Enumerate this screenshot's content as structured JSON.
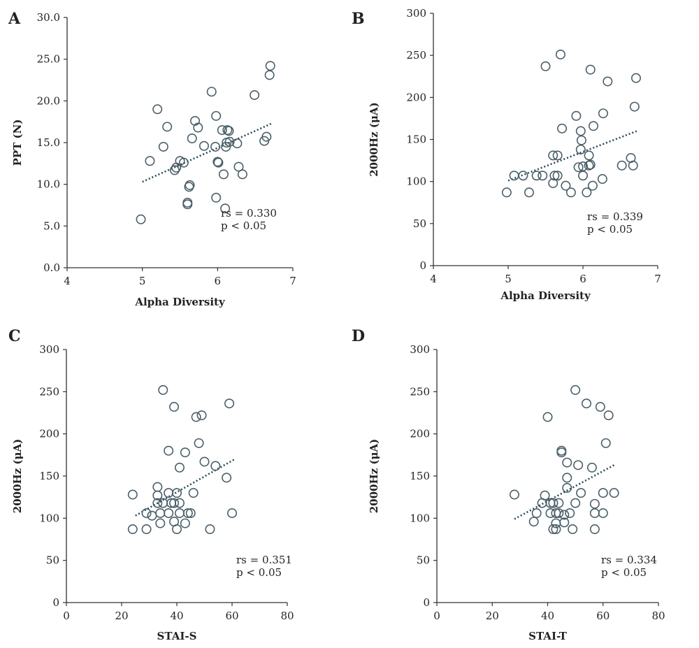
{
  "chart_data": [
    {
      "panel": "A",
      "type": "scatter",
      "xlabel": "Alpha Diversity",
      "ylabel": "PPT (N)",
      "xlim": [
        4,
        7
      ],
      "ylim": [
        0,
        30
      ],
      "xticks": [
        "4",
        "5",
        "6",
        "7"
      ],
      "yticks": [
        "0.0",
        "5.0",
        "10.0",
        "15.0",
        "20.0",
        "25.0",
        "30.0"
      ],
      "points": [
        [
          4.98,
          5.8
        ],
        [
          5.1,
          12.8
        ],
        [
          5.2,
          19.0
        ],
        [
          5.28,
          14.5
        ],
        [
          5.33,
          16.9
        ],
        [
          5.43,
          11.7
        ],
        [
          5.45,
          12.0
        ],
        [
          5.5,
          12.8
        ],
        [
          5.55,
          12.6
        ],
        [
          5.6,
          7.8
        ],
        [
          5.6,
          7.6
        ],
        [
          5.62,
          9.7
        ],
        [
          5.63,
          9.9
        ],
        [
          5.66,
          15.5
        ],
        [
          5.7,
          17.6
        ],
        [
          5.74,
          16.8
        ],
        [
          5.82,
          14.6
        ],
        [
          5.92,
          21.1
        ],
        [
          5.97,
          14.5
        ],
        [
          5.98,
          18.2
        ],
        [
          5.98,
          8.4
        ],
        [
          6.0,
          12.7
        ],
        [
          6.01,
          12.6
        ],
        [
          6.06,
          16.5
        ],
        [
          6.08,
          11.2
        ],
        [
          6.1,
          7.1
        ],
        [
          6.11,
          14.5
        ],
        [
          6.12,
          15.0
        ],
        [
          6.13,
          16.5
        ],
        [
          6.15,
          16.4
        ],
        [
          6.16,
          15.1
        ],
        [
          6.26,
          14.9
        ],
        [
          6.28,
          12.1
        ],
        [
          6.33,
          11.2
        ],
        [
          6.49,
          20.7
        ],
        [
          6.62,
          15.2
        ],
        [
          6.65,
          15.7
        ],
        [
          6.69,
          23.1
        ],
        [
          6.7,
          24.2
        ]
      ],
      "trend": [
        [
          5.0,
          10.3
        ],
        [
          6.72,
          17.3
        ]
      ],
      "annotation": [
        "rs = 0.330",
        "p < 0.05"
      ]
    },
    {
      "panel": "B",
      "type": "scatter",
      "xlabel": "Alpha Diversity",
      "ylabel": "2000Hz (μA)",
      "xlim": [
        4,
        7
      ],
      "ylim": [
        0,
        300
      ],
      "xticks": [
        "4",
        "5",
        "6",
        "7"
      ],
      "yticks": [
        "0",
        "50",
        "100",
        "150",
        "200",
        "250",
        "300"
      ],
      "points": [
        [
          4.98,
          87
        ],
        [
          5.08,
          107
        ],
        [
          5.2,
          107
        ],
        [
          5.28,
          87
        ],
        [
          5.38,
          107
        ],
        [
          5.46,
          107
        ],
        [
          5.5,
          237
        ],
        [
          5.6,
          131
        ],
        [
          5.6,
          98
        ],
        [
          5.62,
          107
        ],
        [
          5.66,
          131
        ],
        [
          5.66,
          107
        ],
        [
          5.7,
          251
        ],
        [
          5.72,
          163
        ],
        [
          5.77,
          95
        ],
        [
          5.84,
          87
        ],
        [
          5.91,
          178
        ],
        [
          5.94,
          117
        ],
        [
          5.97,
          160
        ],
        [
          5.97,
          138
        ],
        [
          5.98,
          149
        ],
        [
          6.0,
          118
        ],
        [
          6.0,
          107
        ],
        [
          6.05,
          87
        ],
        [
          6.08,
          131
        ],
        [
          6.08,
          119
        ],
        [
          6.1,
          120
        ],
        [
          6.1,
          233
        ],
        [
          6.13,
          95
        ],
        [
          6.14,
          166
        ],
        [
          6.26,
          103
        ],
        [
          6.27,
          181
        ],
        [
          6.33,
          219
        ],
        [
          6.52,
          119
        ],
        [
          6.64,
          128
        ],
        [
          6.67,
          119
        ],
        [
          6.69,
          189
        ],
        [
          6.71,
          223
        ]
      ],
      "trend": [
        [
          5.0,
          101
        ],
        [
          6.72,
          160
        ]
      ],
      "annotation": [
        "rs = 0.339",
        "p < 0.05"
      ]
    },
    {
      "panel": "C",
      "type": "scatter",
      "xlabel": "STAI-S",
      "ylabel": "2000Hz (μA)",
      "xlim": [
        0,
        80
      ],
      "ylim": [
        0,
        300
      ],
      "xticks": [
        "0",
        "20",
        "40",
        "60",
        "80"
      ],
      "yticks": [
        "0",
        "50",
        "100",
        "150",
        "200",
        "250",
        "300"
      ],
      "points": [
        [
          24,
          87
        ],
        [
          24,
          128
        ],
        [
          29,
          87
        ],
        [
          29,
          106
        ],
        [
          31,
          103
        ],
        [
          33,
          118
        ],
        [
          33,
          127
        ],
        [
          33,
          137
        ],
        [
          34,
          94
        ],
        [
          34,
          106
        ],
        [
          35,
          118
        ],
        [
          35,
          252
        ],
        [
          37,
          106
        ],
        [
          37,
          130
        ],
        [
          37,
          180
        ],
        [
          38,
          118
        ],
        [
          39,
          96
        ],
        [
          39,
          118
        ],
        [
          39,
          232
        ],
        [
          40,
          87
        ],
        [
          40,
          130
        ],
        [
          41,
          106
        ],
        [
          41,
          118
        ],
        [
          41,
          160
        ],
        [
          43,
          94
        ],
        [
          43,
          178
        ],
        [
          44,
          106
        ],
        [
          45,
          106
        ],
        [
          46,
          130
        ],
        [
          47,
          220
        ],
        [
          48,
          189
        ],
        [
          49,
          222
        ],
        [
          50,
          167
        ],
        [
          52,
          87
        ],
        [
          54,
          162
        ],
        [
          58,
          148
        ],
        [
          59,
          236
        ],
        [
          60,
          106
        ]
      ],
      "trend": [
        [
          25,
          103
        ],
        [
          61,
          170
        ]
      ],
      "annotation": [
        "rs = 0.351",
        "p < 0.05"
      ]
    },
    {
      "panel": "D",
      "type": "scatter",
      "xlabel": "STAI-T",
      "ylabel": "2000Hz (μA)",
      "xlim": [
        0,
        80
      ],
      "ylim": [
        0,
        300
      ],
      "xticks": [
        "0",
        "20",
        "40",
        "60",
        "80"
      ],
      "yticks": [
        "0",
        "50",
        "100",
        "150",
        "200",
        "250",
        "300"
      ],
      "points": [
        [
          28,
          128
        ],
        [
          35,
          96
        ],
        [
          36,
          106
        ],
        [
          38,
          118
        ],
        [
          39,
          127
        ],
        [
          40,
          220
        ],
        [
          41,
          106
        ],
        [
          41,
          118
        ],
        [
          42,
          118
        ],
        [
          42,
          87
        ],
        [
          43,
          87
        ],
        [
          43,
          94
        ],
        [
          43,
          106
        ],
        [
          44,
          106
        ],
        [
          44,
          118
        ],
        [
          45,
          178
        ],
        [
          45,
          180
        ],
        [
          46,
          95
        ],
        [
          46,
          104
        ],
        [
          47,
          136
        ],
        [
          47,
          148
        ],
        [
          47,
          166
        ],
        [
          48,
          106
        ],
        [
          49,
          87
        ],
        [
          50,
          118
        ],
        [
          50,
          252
        ],
        [
          51,
          163
        ],
        [
          52,
          130
        ],
        [
          54,
          236
        ],
        [
          56,
          160
        ],
        [
          57,
          87
        ],
        [
          57,
          106
        ],
        [
          57,
          117
        ],
        [
          59,
          232
        ],
        [
          60,
          106
        ],
        [
          60,
          130
        ],
        [
          61,
          189
        ],
        [
          62,
          222
        ],
        [
          64,
          130
        ]
      ],
      "trend": [
        [
          28,
          99
        ],
        [
          64,
          163
        ]
      ],
      "annotation": [
        "rs = 0.334",
        "p < 0.05"
      ]
    }
  ]
}
